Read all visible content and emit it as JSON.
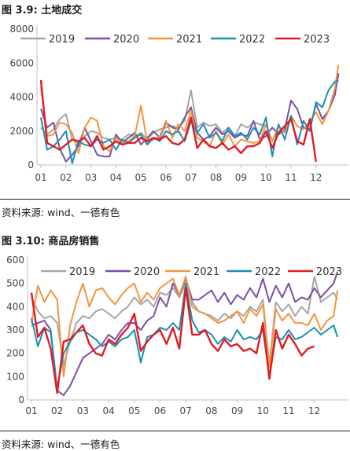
{
  "fig1": {
    "title": "图 3.9: 土地成交",
    "source": "资料来源: wind、一德有色"
  },
  "fig2": {
    "title": "图 3.10: 商品房销售",
    "source": "资料来源: wind、一德有色"
  },
  "chart_data": [
    {
      "type": "line",
      "title": "图 3.9: 土地成交",
      "categories": [
        "01",
        "02",
        "03",
        "04",
        "05",
        "06",
        "07",
        "08",
        "09",
        "10",
        "11",
        "12"
      ],
      "ylim": [
        0,
        8000
      ],
      "yticks": [
        0,
        2000,
        4000,
        6000,
        8000
      ],
      "grid": false,
      "legend": "top",
      "series": [
        {
          "name": "2019",
          "color": "#a6a6a6",
          "x": [
            1,
            1.25,
            1.5,
            1.75,
            2,
            2.25,
            2.5,
            2.75,
            3,
            3.25,
            3.5,
            3.75,
            4,
            4.25,
            4.5,
            4.75,
            5,
            5.25,
            5.5,
            5.75,
            6,
            6.25,
            6.5,
            6.75,
            7,
            7.25,
            7.5,
            7.75,
            8,
            8.25,
            8.5,
            8.75,
            9,
            9.25,
            9.5,
            9.75,
            10
          ],
          "values": [
            2200,
            1800,
            2100,
            2700,
            3000,
            1500,
            1300,
            1700,
            2000,
            1900,
            1600,
            1500,
            1600,
            1500,
            1800,
            1700,
            1900,
            1500,
            1900,
            2100,
            2200,
            2300,
            2200,
            2600,
            4400,
            2200,
            2500,
            2300,
            2400,
            1900,
            2200,
            1700,
            2400,
            2200,
            2500,
            2400,
            2300
          ]
        },
        {
          "name": "2020",
          "color": "#7b4fa8",
          "x": [
            1,
            1.25,
            1.5,
            1.75,
            2,
            2.25,
            2.5,
            2.75,
            3,
            3.25,
            3.5,
            3.75,
            4,
            4.25,
            4.5,
            4.75,
            5,
            5.25,
            5.5,
            5.75,
            6,
            6.25,
            6.5,
            6.75,
            7,
            7.25,
            7.5,
            7.75,
            8,
            8.25,
            8.5,
            8.75,
            9,
            9.25,
            9.5,
            9.75,
            10,
            10.25,
            10.5,
            10.75,
            11,
            11.25,
            11.5,
            11.75,
            12,
            12.25,
            12.5,
            12.75,
            12.9
          ],
          "values": [
            3300,
            2200,
            2500,
            1000,
            200,
            600,
            1100,
            2200,
            1400,
            600,
            500,
            500,
            1800,
            1300,
            1600,
            1900,
            1200,
            1600,
            2000,
            1600,
            2500,
            2200,
            2100,
            2800,
            3400,
            1900,
            1500,
            1700,
            2200,
            1800,
            2000,
            1600,
            1800,
            1700,
            2600,
            1500,
            1700,
            2200,
            1800,
            2100,
            3800,
            3300,
            2200,
            2100,
            3600,
            2700,
            3200,
            4100,
            5400
          ]
        },
        {
          "name": "2021",
          "color": "#f2953f",
          "x": [
            1,
            1.25,
            1.5,
            1.75,
            2,
            2.25,
            2.5,
            2.75,
            3,
            3.25,
            3.5,
            3.75,
            4,
            4.25,
            4.5,
            4.75,
            5,
            5.25,
            5.5,
            5.75,
            6,
            6.25,
            6.5,
            6.75,
            7,
            7.25,
            7.5,
            7.75,
            8,
            8.25,
            8.5,
            8.75,
            9,
            9.25,
            9.5,
            9.75,
            10,
            10.25,
            10.5,
            10.75,
            11,
            11.25,
            11.5,
            11.75,
            12,
            12.25,
            12.5,
            12.75,
            12.9
          ],
          "values": [
            4600,
            1700,
            1800,
            2500,
            2400,
            1900,
            700,
            2200,
            2800,
            2600,
            1100,
            800,
            1600,
            1300,
            1400,
            1700,
            3500,
            1300,
            1500,
            1700,
            2600,
            1600,
            2400,
            2000,
            3200,
            1600,
            1400,
            1100,
            2000,
            1200,
            1800,
            1100,
            1500,
            1400,
            1300,
            1400,
            2400,
            1400,
            2300,
            1900,
            2900,
            2300,
            2100,
            2600,
            3100,
            2400,
            3200,
            4500,
            5900
          ]
        },
        {
          "name": "2022",
          "color": "#1a8fb5",
          "x": [
            1,
            1.25,
            1.5,
            1.75,
            2,
            2.25,
            2.5,
            2.75,
            3,
            3.25,
            3.5,
            3.75,
            4,
            4.25,
            4.5,
            4.75,
            5,
            5.25,
            5.5,
            5.75,
            6,
            6.25,
            6.5,
            6.75,
            7,
            7.25,
            7.5,
            7.75,
            8,
            8.25,
            8.5,
            8.75,
            9,
            9.25,
            9.5,
            9.75,
            10,
            10.25,
            10.5,
            10.75,
            11,
            11.25,
            11.5,
            11.75,
            12,
            12.25,
            12.5,
            12.75,
            12.9
          ],
          "values": [
            2800,
            900,
            1100,
            1500,
            2000,
            100,
            1400,
            1200,
            1100,
            1500,
            1300,
            1500,
            900,
            1500,
            1300,
            1600,
            1800,
            1200,
            1600,
            1400,
            2000,
            1800,
            2000,
            1400,
            2600,
            1900,
            2400,
            1600,
            1900,
            1400,
            2200,
            1700,
            1900,
            1500,
            2200,
            1800,
            2800,
            500,
            2400,
            1500,
            2900,
            1200,
            2600,
            2000,
            3700,
            3400,
            4400,
            4900,
            5000
          ]
        },
        {
          "name": "2023",
          "color": "#e11b22",
          "x": [
            1,
            1.25,
            1.5,
            1.75,
            2,
            2.25,
            2.5,
            2.75,
            3,
            3.25,
            3.5,
            3.75,
            4,
            4.25,
            4.5,
            4.75,
            5,
            5.25,
            5.5,
            5.75,
            6,
            6.25,
            6.5,
            6.75,
            7,
            7.25,
            7.5,
            7.75,
            8,
            8.25,
            8.5,
            8.75,
            9,
            9.25,
            9.5,
            9.75,
            10,
            10.25,
            10.5,
            10.75,
            11,
            11.25,
            11.5,
            11.75,
            12
          ],
          "values": [
            5000,
            1300,
            1100,
            900,
            1200,
            1500,
            1400,
            1600,
            1100,
            1700,
            900,
            1100,
            1400,
            1200,
            1300,
            1300,
            1600,
            1400,
            1600,
            1500,
            1700,
            1300,
            1200,
            1500,
            2800,
            1000,
            1500,
            1100,
            1000,
            1300,
            900,
            1100,
            700,
            1100,
            1100,
            1300,
            2000,
            1000,
            1900,
            2300,
            2700,
            1400,
            1200,
            2700,
            200
          ]
        }
      ]
    },
    {
      "type": "line",
      "title": "图 3.10: 商品房销售",
      "categories": [
        "01",
        "02",
        "03",
        "04",
        "05",
        "06",
        "07",
        "08",
        "09",
        "10",
        "11",
        "12"
      ],
      "ylim": [
        0,
        600
      ],
      "yticks": [
        0,
        100,
        200,
        300,
        400,
        500,
        600
      ],
      "grid": false,
      "legend": "top",
      "series": [
        {
          "name": "2019",
          "color": "#a6a6a6",
          "x": [
            1,
            1.25,
            1.5,
            1.75,
            2,
            2.25,
            2.5,
            2.75,
            3,
            3.25,
            3.5,
            3.75,
            4,
            4.25,
            4.5,
            4.75,
            5,
            5.25,
            5.5,
            5.75,
            6,
            6.25,
            6.5,
            6.75,
            7,
            7.25,
            7.5,
            7.75,
            8,
            8.25,
            8.5,
            8.75,
            9,
            9.25,
            9.5,
            9.75,
            10,
            10.25,
            10.5,
            10.75,
            11,
            11.25,
            11.5,
            11.75,
            12,
            12.25,
            12.5,
            12.75,
            12.9
          ],
          "values": [
            440,
            380,
            350,
            360,
            330,
            150,
            250,
            330,
            360,
            350,
            380,
            390,
            370,
            350,
            380,
            400,
            440,
            410,
            430,
            400,
            460,
            450,
            480,
            440,
            500,
            420,
            380,
            370,
            360,
            340,
            370,
            350,
            380,
            360,
            400,
            380,
            430,
            150,
            420,
            380,
            410,
            360,
            400,
            370,
            530,
            420,
            440,
            460,
            430
          ]
        },
        {
          "name": "2020",
          "color": "#7b4fa8",
          "x": [
            1,
            1.25,
            1.5,
            1.75,
            2,
            2.25,
            2.5,
            2.75,
            3,
            3.25,
            3.5,
            3.75,
            4,
            4.25,
            4.5,
            4.75,
            5,
            5.25,
            5.5,
            5.75,
            6,
            6.25,
            6.5,
            6.75,
            7,
            7.25,
            7.5,
            7.75,
            8,
            8.25,
            8.5,
            8.75,
            9,
            9.25,
            9.5,
            9.75,
            10,
            10.25,
            10.5,
            10.75,
            11,
            11.25,
            11.5,
            11.75,
            12,
            12.25,
            12.5,
            12.75,
            12.9
          ],
          "values": [
            320,
            330,
            340,
            300,
            40,
            20,
            60,
            120,
            180,
            200,
            220,
            240,
            280,
            260,
            300,
            330,
            330,
            300,
            340,
            360,
            440,
            400,
            500,
            450,
            520,
            430,
            430,
            450,
            470,
            420,
            460,
            410,
            450,
            430,
            480,
            440,
            520,
            420,
            490,
            440,
            500,
            420,
            440,
            430,
            480,
            440,
            470,
            500,
            550
          ]
        },
        {
          "name": "2021",
          "color": "#f2953f",
          "x": [
            1,
            1.25,
            1.5,
            1.75,
            2,
            2.25,
            2.5,
            2.75,
            3,
            3.25,
            3.5,
            3.75,
            4,
            4.25,
            4.5,
            4.75,
            5,
            5.25,
            5.5,
            5.75,
            6,
            6.25,
            6.5,
            6.75,
            7,
            7.25,
            7.5,
            7.75,
            8,
            8.25,
            8.5,
            8.75,
            9,
            9.25,
            9.5,
            9.75,
            10,
            10.25,
            10.5,
            10.75,
            11,
            11.25,
            11.5,
            11.75,
            12,
            12.25,
            12.5,
            12.75,
            12.9
          ],
          "values": [
            330,
            490,
            420,
            470,
            430,
            100,
            320,
            420,
            500,
            400,
            470,
            480,
            440,
            410,
            450,
            480,
            500,
            420,
            460,
            430,
            480,
            500,
            520,
            450,
            530,
            400,
            380,
            370,
            350,
            330,
            340,
            360,
            380,
            330,
            390,
            360,
            410,
            140,
            390,
            340,
            370,
            330,
            330,
            320,
            370,
            300,
            340,
            360,
            470
          ]
        },
        {
          "name": "2022",
          "color": "#1a8fb5",
          "x": [
            1,
            1.25,
            1.5,
            1.75,
            2,
            2.25,
            2.5,
            2.75,
            3,
            3.25,
            3.5,
            3.75,
            4,
            4.25,
            4.5,
            4.75,
            5,
            5.25,
            5.5,
            5.75,
            6,
            6.25,
            6.5,
            6.75,
            7,
            7.25,
            7.5,
            7.75,
            8,
            8.25,
            8.5,
            8.75,
            9,
            9.25,
            9.5,
            9.75,
            10,
            10.25,
            10.5,
            10.75,
            11,
            11.25,
            11.5,
            11.75,
            12,
            12.25,
            12.5,
            12.75,
            12.9
          ],
          "values": [
            350,
            230,
            310,
            290,
            50,
            200,
            250,
            290,
            300,
            280,
            260,
            230,
            250,
            230,
            260,
            270,
            300,
            160,
            270,
            280,
            310,
            300,
            330,
            300,
            500,
            340,
            290,
            300,
            280,
            240,
            270,
            250,
            300,
            260,
            270,
            260,
            300,
            100,
            270,
            260,
            300,
            260,
            270,
            290,
            310,
            280,
            300,
            320,
            270
          ]
        },
        {
          "name": "2023",
          "color": "#e11b22",
          "x": [
            1,
            1.25,
            1.5,
            1.75,
            2,
            2.25,
            2.5,
            2.75,
            3,
            3.25,
            3.5,
            3.75,
            4,
            4.25,
            4.5,
            4.75,
            5,
            5.25,
            5.5,
            5.75,
            6,
            6.25,
            6.5,
            6.75,
            7,
            7.25,
            7.5,
            7.75,
            8,
            8.25,
            8.5,
            8.75,
            9,
            9.25,
            9.5,
            9.75,
            10,
            10.25,
            10.5,
            10.75,
            11,
            11.25,
            11.5,
            11.75,
            12
          ],
          "values": [
            460,
            270,
            310,
            220,
            30,
            250,
            260,
            290,
            320,
            240,
            200,
            190,
            260,
            240,
            280,
            310,
            370,
            210,
            250,
            280,
            300,
            240,
            310,
            220,
            480,
            280,
            280,
            300,
            240,
            210,
            260,
            230,
            240,
            210,
            220,
            200,
            330,
            90,
            300,
            220,
            280,
            240,
            190,
            220,
            230
          ]
        }
      ]
    }
  ]
}
